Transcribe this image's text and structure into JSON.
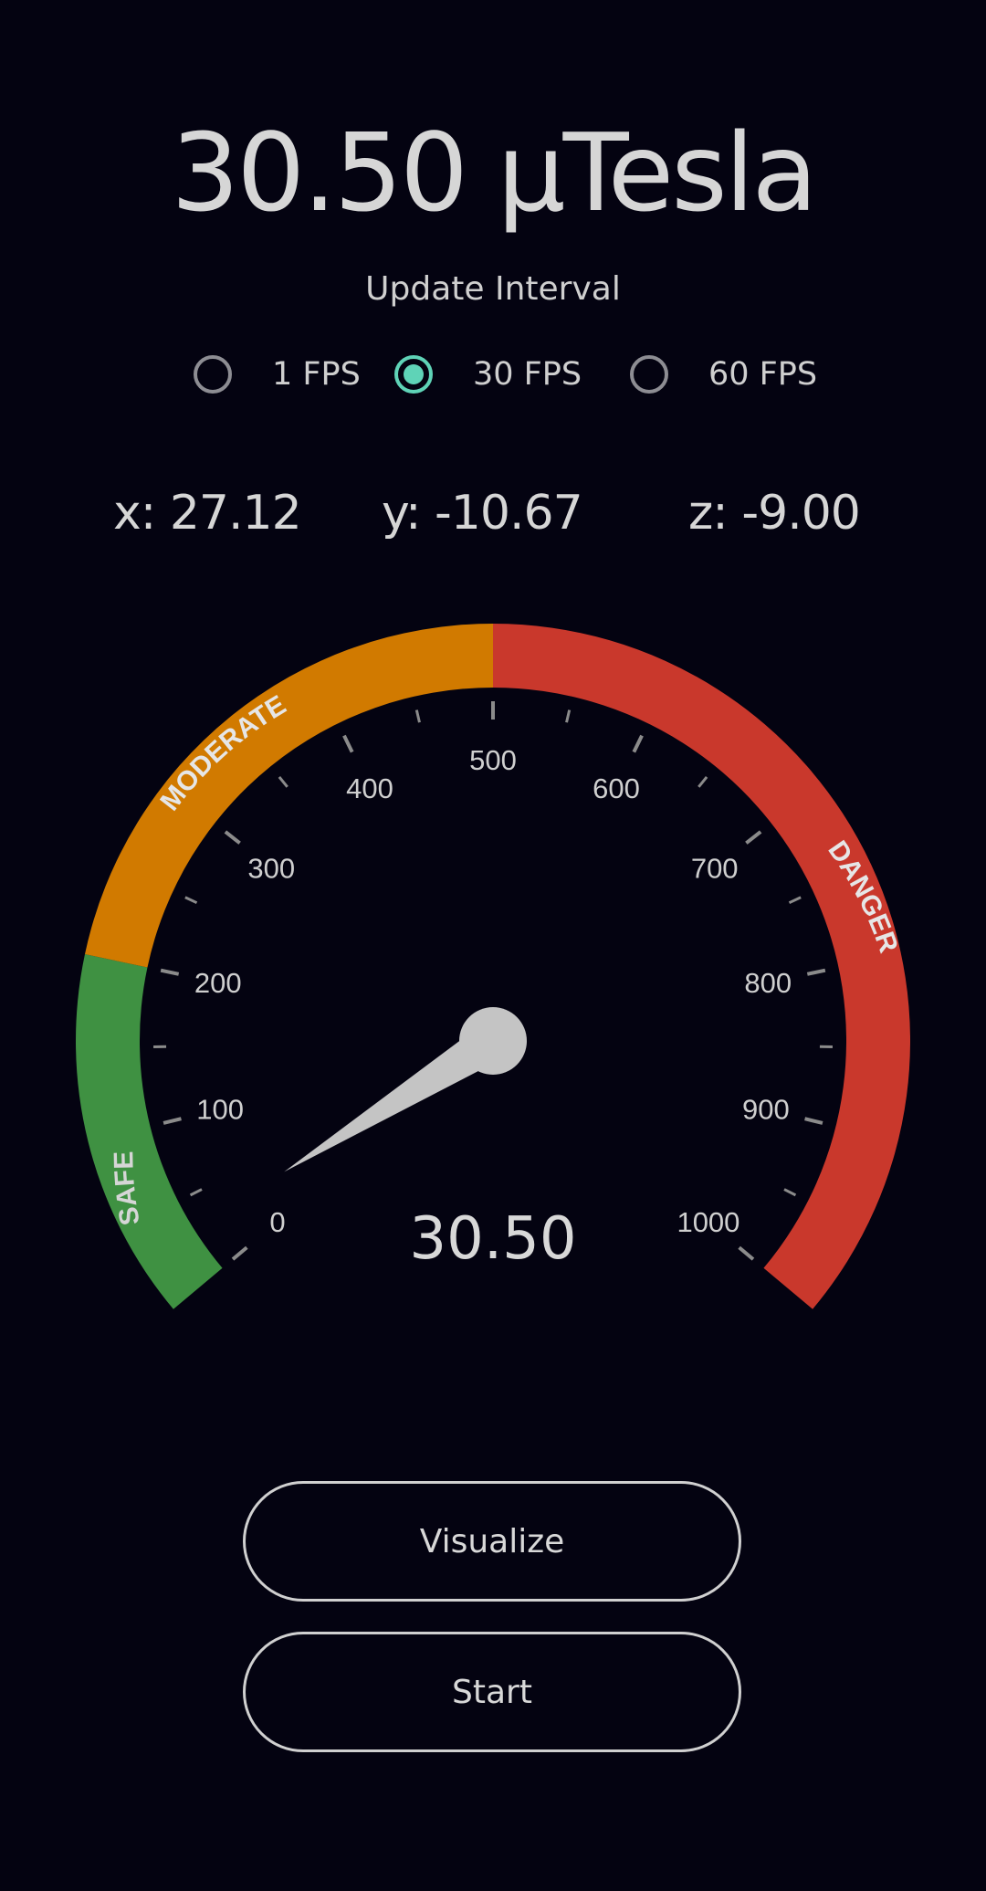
{
  "reading": {
    "value": "30.50",
    "unit": "µTesla",
    "display": "30.50 µTesla"
  },
  "update_interval": {
    "label": "Update Interval",
    "options": [
      {
        "label": "1 FPS",
        "selected": false
      },
      {
        "label": "30 FPS",
        "selected": true
      },
      {
        "label": "60 FPS",
        "selected": false
      }
    ]
  },
  "axes": {
    "x": "x: 27.12",
    "y": "y: -10.67",
    "z": "z: -9.00"
  },
  "gauge": {
    "value": 30.5,
    "value_label": "30.50",
    "min": 0,
    "max": 1000,
    "major_ticks": [
      "0",
      "100",
      "200",
      "300",
      "400",
      "500",
      "600",
      "700",
      "800",
      "900",
      "1000"
    ],
    "zones": [
      {
        "label": "SAFE",
        "from": 0,
        "to": 200,
        "color": "#3f9142"
      },
      {
        "label": "MODERATE",
        "from": 200,
        "to": 500,
        "color": "#d17a00"
      },
      {
        "label": "DANGER",
        "from": 500,
        "to": 1000,
        "color": "#c9382c"
      }
    ],
    "needle_color": "#c4c4c4",
    "tick_color": "#8b8b8b",
    "label_color": "#cfcfcf"
  },
  "buttons": {
    "visualize": "Visualize",
    "start": "Start"
  },
  "colors": {
    "background": "#040311",
    "accent": "#5fd3b7"
  }
}
